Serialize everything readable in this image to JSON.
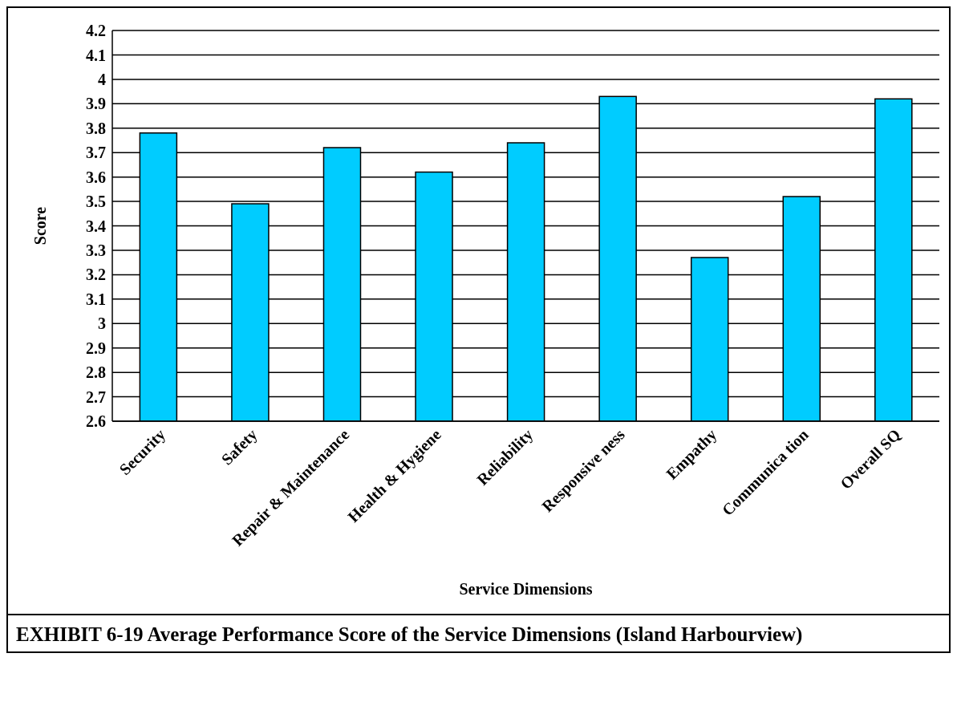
{
  "chart_data": {
    "type": "bar",
    "title": "EXHIBIT 6-19 Average Performance Score of the Service Dimensions (Island Harbourview)",
    "xlabel": "Service Dimensions",
    "ylabel": "Score",
    "categories": [
      "Security",
      "Safety",
      "Repair & Maintenance",
      "Health & Hygiene",
      "Reliability",
      "Responsive ness",
      "Empathy",
      "Communica tion",
      "Overall SQ"
    ],
    "values": [
      3.78,
      3.49,
      3.72,
      3.62,
      3.74,
      3.93,
      3.27,
      3.52,
      3.92
    ],
    "color": "#00ccff",
    "ylim": [
      2.6,
      4.2
    ],
    "yticks": [
      2.6,
      2.7,
      2.8,
      2.9,
      3,
      3.1,
      3.2,
      3.3,
      3.4,
      3.5,
      3.6,
      3.7,
      3.8,
      3.9,
      4,
      4.1,
      4.2
    ],
    "grid": "y"
  }
}
